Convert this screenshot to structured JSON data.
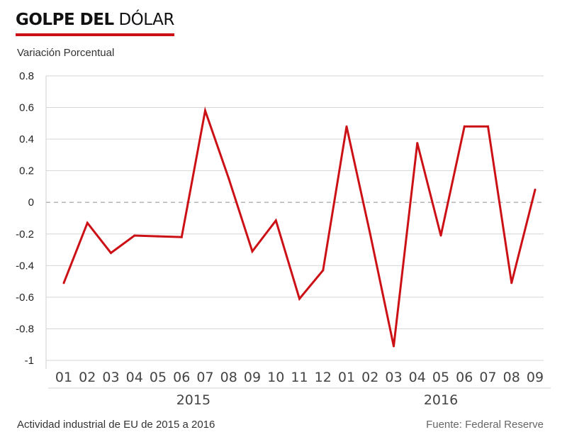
{
  "header": {
    "title_bold": "GOLPE DEL",
    "title_light": "DÓLAR",
    "accent_color": "#cc1116"
  },
  "footer": {
    "caption": "Actividad industrial de EU de 2015 a 2016",
    "source": "Fuente: Federal Reserve"
  },
  "chart_data": {
    "type": "line",
    "title": "GOLPE DEL DÓLAR",
    "ylabel": "Variación Porcentual",
    "xlabel": "",
    "ylim": [
      -1,
      0.8
    ],
    "yticks": [
      0.8,
      0.6,
      0.4,
      0.2,
      0,
      -0.2,
      -0.4,
      -0.6,
      -0.8,
      -1
    ],
    "ytick_labels": [
      "0.8",
      "0.6",
      "0.4",
      "0.2",
      "0",
      "-0.2",
      "-0.4",
      "-0.6",
      "-0.8",
      "-1"
    ],
    "grid": true,
    "zero_line": "dashed",
    "categories": [
      "01",
      "02",
      "03",
      "04",
      "05",
      "06",
      "07",
      "08",
      "09",
      "10",
      "11",
      "12",
      "01",
      "02",
      "03",
      "04",
      "05",
      "06",
      "07",
      "08",
      "09"
    ],
    "year_groups": [
      {
        "label": "2015",
        "start": 0,
        "end": 11
      },
      {
        "label": "2016",
        "start": 12,
        "end": 20
      }
    ],
    "series": [
      {
        "color": "#cc1116",
        "values": [
          -0.51,
          -0.13,
          -0.32,
          -0.21,
          -0.215,
          -0.22,
          0.58,
          0.15,
          -0.31,
          -0.115,
          -0.61,
          -0.43,
          0.48,
          -0.2,
          -0.91,
          0.375,
          -0.21,
          0.48,
          0.48,
          -0.51,
          0.08
        ]
      }
    ]
  }
}
